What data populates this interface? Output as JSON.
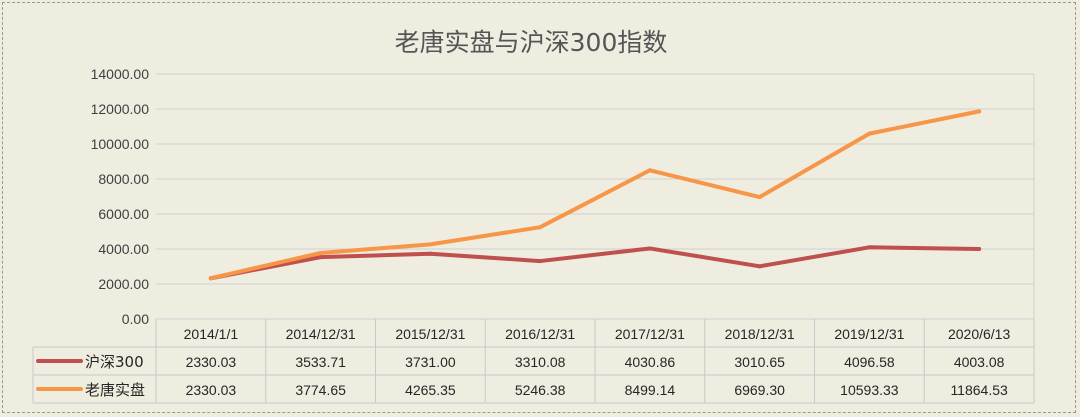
{
  "chart_data": {
    "type": "line",
    "title": "老唐实盘与沪深300指数",
    "categories": [
      "2014/1/1",
      "2014/12/31",
      "2015/12/31",
      "2016/12/31",
      "2017/12/31",
      "2018/12/31",
      "2019/12/31",
      "2020/6/13"
    ],
    "ylim": [
      0,
      14000
    ],
    "yticks": [
      "0.00",
      "2000.00",
      "4000.00",
      "6000.00",
      "8000.00",
      "10000.00",
      "12000.00",
      "14000.00"
    ],
    "grid": true,
    "legend": "data-table-left",
    "series": [
      {
        "name": "沪深300",
        "color": "#c0504d",
        "values": [
          2330.03,
          3533.71,
          3731.0,
          3310.08,
          4030.86,
          3010.65,
          4096.58,
          4003.08
        ],
        "labels": [
          "2330.03",
          "3533.71",
          "3731.00",
          "3310.08",
          "4030.86",
          "3010.65",
          "4096.58",
          "4003.08"
        ]
      },
      {
        "name": "老唐实盘",
        "color": "#f79646",
        "values": [
          2330.03,
          3774.65,
          4265.35,
          5246.38,
          8499.14,
          6969.3,
          10593.33,
          11864.53
        ],
        "labels": [
          "2330.03",
          "3774.65",
          "4265.35",
          "5246.38",
          "8499.14",
          "6969.30",
          "10593.33",
          "11864.53"
        ]
      }
    ]
  }
}
